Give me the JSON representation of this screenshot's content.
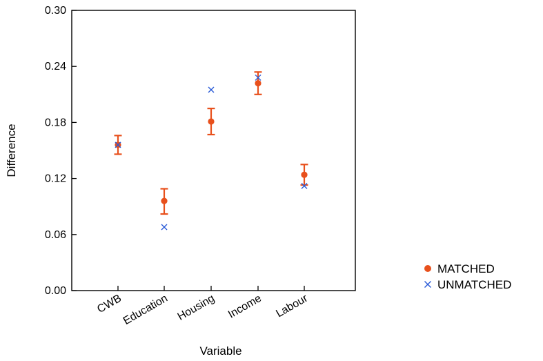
{
  "chart_data": {
    "type": "scatter",
    "title": "",
    "xlabel": "Variable",
    "ylabel": "Difference",
    "categories": [
      "CWB",
      "Education",
      "Housing",
      "Income",
      "Labour"
    ],
    "ylim": [
      0.0,
      0.3
    ],
    "yticks": [
      "0.00",
      "0.06",
      "0.12",
      "0.18",
      "0.24",
      "0.30"
    ],
    "grid": false,
    "legend_position": "right",
    "series": [
      {
        "name": "MATCHED",
        "marker": "circle",
        "color": "#e8501c",
        "values": [
          0.156,
          0.096,
          0.181,
          0.222,
          0.124
        ],
        "error_low": [
          0.146,
          0.082,
          0.167,
          0.21,
          0.113
        ],
        "error_high": [
          0.166,
          0.109,
          0.195,
          0.234,
          0.135
        ]
      },
      {
        "name": "UNMATCHED",
        "marker": "x",
        "color": "#2a5bd7",
        "values": [
          0.156,
          0.068,
          0.215,
          0.228,
          0.112
        ]
      }
    ]
  }
}
